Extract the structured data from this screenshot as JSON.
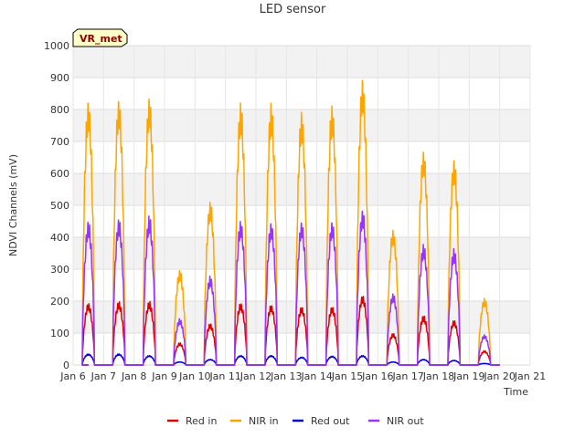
{
  "chart_data": {
    "type": "line",
    "title": "LED sensor",
    "xlabel": "Time",
    "ylabel": "NDVI Channels (mV)",
    "ylim": [
      0,
      1000
    ],
    "yticks": [
      0,
      100,
      200,
      300,
      400,
      500,
      600,
      700,
      800,
      900,
      1000
    ],
    "xlim": [
      6,
      21
    ],
    "xticks": [
      {
        "value": 6,
        "label": "Jan 6"
      },
      {
        "value": 7,
        "label": "Jan 7"
      },
      {
        "value": 8,
        "label": "Jan 8"
      },
      {
        "value": 9,
        "label": "Jan 9"
      },
      {
        "value": 10,
        "label": "Jan 10"
      },
      {
        "value": 11,
        "label": "Jan 11"
      },
      {
        "value": 12,
        "label": "Jan 12"
      },
      {
        "value": 13,
        "label": "Jan 13"
      },
      {
        "value": 14,
        "label": "Jan 14"
      },
      {
        "value": 15,
        "label": "Jan 15"
      },
      {
        "value": 16,
        "label": "Jan 16"
      },
      {
        "value": 17,
        "label": "Jan 17"
      },
      {
        "value": 18,
        "label": "Jan 18"
      },
      {
        "value": 19,
        "label": "Jan 19"
      },
      {
        "value": 20,
        "label": "Jan 20"
      },
      {
        "value": 21,
        "label": "Jan 21"
      }
    ],
    "badge": "VR_met",
    "legend_position": "bottom",
    "day_window": {
      "start": 6.5,
      "end": 20.0,
      "daylight_from": 0.3,
      "daylight_to": 0.7
    },
    "series": [
      {
        "name": "Red in",
        "color": "#dd0000",
        "daily_peaks": [
          195,
          200,
          200,
          70,
          130,
          195,
          190,
          185,
          185,
          220,
          100,
          155,
          140,
          45
        ]
      },
      {
        "name": "NIR in",
        "color": "#ffa500",
        "daily_peaks": [
          835,
          845,
          850,
          300,
          515,
          825,
          820,
          795,
          820,
          905,
          430,
          680,
          650,
          210
        ]
      },
      {
        "name": "Red out",
        "color": "#0000cc",
        "daily_peaks": [
          35,
          35,
          30,
          10,
          18,
          30,
          30,
          25,
          28,
          30,
          10,
          18,
          15,
          5
        ]
      },
      {
        "name": "NIR out",
        "color": "#9933ff",
        "daily_peaks": [
          455,
          460,
          470,
          145,
          280,
          455,
          450,
          455,
          455,
          490,
          225,
          380,
          365,
          95
        ]
      }
    ]
  }
}
